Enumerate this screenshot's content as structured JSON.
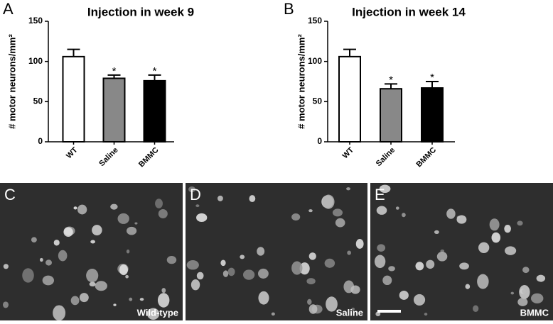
{
  "chart_data": [
    {
      "type": "bar",
      "panel_label": "A",
      "title": "Injection in week 9",
      "ylabel": "# motor neurons/mm²",
      "categories": [
        "WT",
        "Saline",
        "BMMC"
      ],
      "values": [
        106,
        79,
        76
      ],
      "errors": [
        9,
        4,
        7
      ],
      "significance_labels": [
        null,
        "*",
        "*"
      ],
      "colors": [
        "#ffffff",
        "#888888",
        "#000000"
      ],
      "ylim": [
        0,
        150
      ],
      "yticks": [
        0,
        50,
        100,
        150
      ]
    },
    {
      "type": "bar",
      "panel_label": "B",
      "title": "Injection in week 14",
      "ylabel": "# motor neurons/mm²",
      "categories": [
        "WT",
        "Saline",
        "BMMC"
      ],
      "values": [
        106,
        66,
        67
      ],
      "errors": [
        9,
        6,
        8
      ],
      "significance_labels": [
        null,
        "*",
        "*"
      ],
      "colors": [
        "#ffffff",
        "#888888",
        "#000000"
      ],
      "ylim": [
        0,
        150
      ],
      "yticks": [
        0,
        50,
        100,
        150
      ]
    }
  ],
  "images": [
    {
      "panel_label": "C",
      "caption": "Wild-type"
    },
    {
      "panel_label": "D",
      "caption": "Saline"
    },
    {
      "panel_label": "E",
      "caption": "BMMC"
    }
  ]
}
